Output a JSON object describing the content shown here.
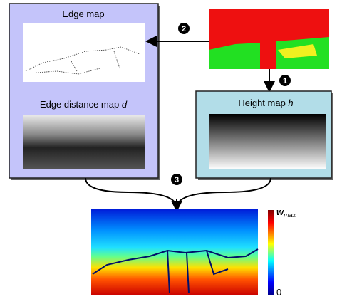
{
  "panels": {
    "edge_map": {
      "label": "Edge map"
    },
    "edge_distance_map": {
      "label": "Edge distance map ",
      "variable": "d"
    },
    "height_map": {
      "label": "Height map ",
      "variable": "h"
    }
  },
  "steps": [
    "1",
    "2",
    "3"
  ],
  "colorbar": {
    "max_symbol": "w",
    "max_subscript": "max",
    "min_label": "0"
  }
}
